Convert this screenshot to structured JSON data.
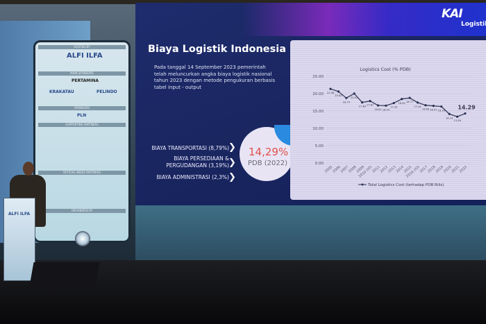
{
  "slide": {
    "brand": {
      "logo": "KAI",
      "sub": "Logistik"
    },
    "title": "Biaya Logistik Indonesia",
    "paragraph": "Pada tanggal 14 September 2023 pemerintah telah meluncurkan angka biaya logistik nasional tahun 2023 dengan metode pengukuran berbasis tabel input - output",
    "cost_items": [
      {
        "label": "BIAYA TRANSPORTASI (8,79%)"
      },
      {
        "label": "BIAYA PERSEDIAAN & PERGUDANGAN (3,19%)"
      },
      {
        "label": "BIAYA ADMINISTRASI (2,3%)"
      }
    ],
    "total": {
      "value": "14,29%",
      "caption": "PDB (2022)"
    }
  },
  "banner": {
    "sections": [
      "HOSTED BY",
      "MAIN SPONSORS",
      "SPONSORS",
      "SUPPORTING PARTNERS",
      "OFFICIAL MEDIA PARTNERS",
      "ORGANIZED BY"
    ],
    "logos": [
      "ALFI ILFA",
      "PERTAMINA",
      "KRAKATAU",
      "PELINDO",
      "PLN"
    ]
  },
  "podium": {
    "logo": "ALFI ILFA"
  },
  "chart_data": {
    "type": "line",
    "title": "Logistics Cost (% PDB)",
    "categories": [
      "2005",
      "2006",
      "2007",
      "2008",
      "2009",
      "2010 (IO)",
      "2011",
      "2012",
      "2013",
      "2014",
      "2015",
      "2016 (IO)",
      "2017",
      "2018",
      "2019",
      "2020",
      "2021",
      "2022"
    ],
    "series": [
      {
        "name": "Total Logistics Cost (terhadap PDB Rilis)",
        "values": [
          21.38,
          20.63,
          18.74,
          20.03,
          17.48,
          17.87,
          16.61,
          16.54,
          17.29,
          18.45,
          18.77,
          17.44,
          16.66,
          16.47,
          16.29,
          14.14,
          13.36,
          14.29
        ]
      }
    ],
    "data_labels": [
      "21.38",
      "20.63",
      "18.74",
      "20.03",
      "17.48",
      "17.87",
      "16.61",
      "16.54",
      "17.29",
      "18.45",
      "18.77",
      "17.44",
      "16.66",
      "16.47",
      "16.29",
      "14.14",
      "13.36",
      "14.29"
    ],
    "yticks": [
      "0.00",
      "5.00",
      "10.00",
      "15.00",
      "20.00",
      "25.00"
    ],
    "ylim": [
      0,
      25
    ],
    "legend": "bottom",
    "line_color": "#2a3050",
    "highlight_last": "14.29"
  }
}
